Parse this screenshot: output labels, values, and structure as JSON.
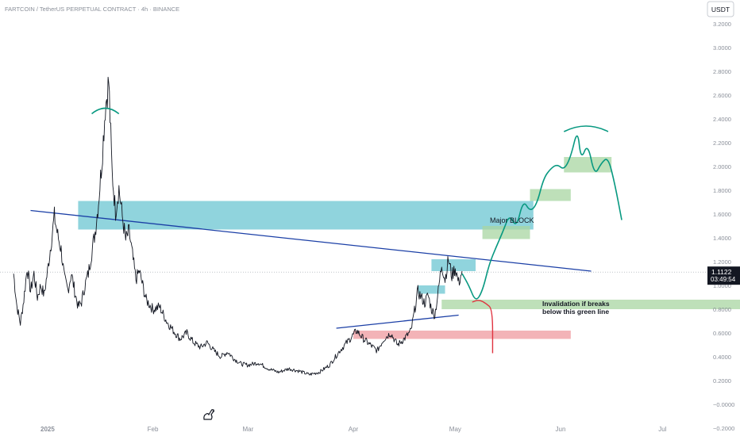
{
  "header": {
    "symbol_line": "FARTCOIN / TetherUS PERPETUAL CONTRACT · 4h · BINANCE"
  },
  "currency_button": "USDT",
  "price_marker": {
    "price": "1.1122",
    "countdown": "03:49:54"
  },
  "annotations": {
    "major_block": "Major BLOCK",
    "invalidation_line1": "Invalidation if breaks",
    "invalidation_line2": "below this green line"
  },
  "colors": {
    "price": "#131722",
    "projection": "#089981",
    "invalidation": "#e0323f",
    "trendline": "#1b3fa6",
    "block": "#46b8c6",
    "green_zone": "#a8d5a2",
    "red_zone": "#f0a0a5",
    "axis_text": "#8a8f99"
  },
  "chart_data": {
    "type": "line",
    "title": "FARTCOIN / TetherUS PERPETUAL CONTRACT · 4h · BINANCE",
    "ylim": [
      -0.2,
      3.4
    ],
    "y_ticks": [
      -0.2,
      0.0,
      0.2,
      0.4,
      0.6,
      0.8,
      1.0,
      1.2,
      1.4,
      1.6,
      1.8,
      2.0,
      2.2,
      2.4,
      2.6,
      2.8,
      3.0,
      3.2
    ],
    "y_tick_labels": [
      "−0.2000",
      "−0.0000",
      "0.2000",
      "0.4000",
      "0.6000",
      "0.8000",
      "1.0000",
      "1.2000",
      "1.4000",
      "1.6000",
      "1.8000",
      "2.0000",
      "2.2000",
      "2.4000",
      "2.6000",
      "2.8000",
      "3.0000",
      "3.2000"
    ],
    "x_range": [
      "2024-12-18",
      "2025-07-14"
    ],
    "x_ticks": [
      {
        "date": "2025-01-01",
        "label": "2025"
      },
      {
        "date": "2025-02-01",
        "label": "Feb"
      },
      {
        "date": "2025-03-01",
        "label": "Mar"
      },
      {
        "date": "2025-04-01",
        "label": "Apr"
      },
      {
        "date": "2025-05-01",
        "label": "May"
      },
      {
        "date": "2025-06-01",
        "label": "Jun"
      },
      {
        "date": "2025-07-01",
        "label": "Jul"
      }
    ],
    "price_series": [
      [
        "2024-12-22",
        1.1
      ],
      [
        "2024-12-23",
        0.82
      ],
      [
        "2024-12-24",
        0.68
      ],
      [
        "2024-12-25",
        0.88
      ],
      [
        "2024-12-26",
        1.15
      ],
      [
        "2024-12-27",
        0.95
      ],
      [
        "2024-12-28",
        1.1
      ],
      [
        "2024-12-29",
        0.9
      ],
      [
        "2024-12-30",
        1.0
      ],
      [
        "2024-12-31",
        0.92
      ],
      [
        "2025-01-01",
        1.12
      ],
      [
        "2025-01-02",
        1.35
      ],
      [
        "2025-01-03",
        1.58
      ],
      [
        "2025-01-04",
        1.42
      ],
      [
        "2025-01-05",
        1.3
      ],
      [
        "2025-01-06",
        1.05
      ],
      [
        "2025-01-07",
        0.96
      ],
      [
        "2025-01-08",
        1.1
      ],
      [
        "2025-01-09",
        0.95
      ],
      [
        "2025-01-10",
        0.82
      ],
      [
        "2025-01-11",
        0.86
      ],
      [
        "2025-01-12",
        1.0
      ],
      [
        "2025-01-13",
        1.1
      ],
      [
        "2025-01-14",
        1.28
      ],
      [
        "2025-01-15",
        1.45
      ],
      [
        "2025-01-16",
        1.7
      ],
      [
        "2025-01-17",
        2.05
      ],
      [
        "2025-01-18",
        2.5
      ],
      [
        "2025-01-19",
        2.72
      ],
      [
        "2025-01-20",
        1.95
      ],
      [
        "2025-01-21",
        1.62
      ],
      [
        "2025-01-22",
        1.82
      ],
      [
        "2025-01-23",
        1.58
      ],
      [
        "2025-01-24",
        1.38
      ],
      [
        "2025-01-25",
        1.45
      ],
      [
        "2025-01-26",
        1.25
      ],
      [
        "2025-01-27",
        1.05
      ],
      [
        "2025-01-28",
        1.12
      ],
      [
        "2025-01-29",
        1.0
      ],
      [
        "2025-01-30",
        0.88
      ],
      [
        "2025-02-01",
        0.8
      ],
      [
        "2025-02-03",
        0.82
      ],
      [
        "2025-02-05",
        0.7
      ],
      [
        "2025-02-07",
        0.62
      ],
      [
        "2025-02-09",
        0.55
      ],
      [
        "2025-02-11",
        0.6
      ],
      [
        "2025-02-13",
        0.52
      ],
      [
        "2025-02-15",
        0.48
      ],
      [
        "2025-02-17",
        0.52
      ],
      [
        "2025-02-19",
        0.45
      ],
      [
        "2025-02-21",
        0.4
      ],
      [
        "2025-02-23",
        0.44
      ],
      [
        "2025-02-25",
        0.38
      ],
      [
        "2025-02-27",
        0.34
      ],
      [
        "2025-03-01",
        0.33
      ],
      [
        "2025-03-04",
        0.35
      ],
      [
        "2025-03-07",
        0.3
      ],
      [
        "2025-03-10",
        0.27
      ],
      [
        "2025-03-13",
        0.3
      ],
      [
        "2025-03-16",
        0.28
      ],
      [
        "2025-03-19",
        0.25
      ],
      [
        "2025-03-22",
        0.27
      ],
      [
        "2025-03-25",
        0.33
      ],
      [
        "2025-03-28",
        0.45
      ],
      [
        "2025-03-31",
        0.55
      ],
      [
        "2025-04-02",
        0.62
      ],
      [
        "2025-04-04",
        0.55
      ],
      [
        "2025-04-06",
        0.5
      ],
      [
        "2025-04-08",
        0.45
      ],
      [
        "2025-04-10",
        0.55
      ],
      [
        "2025-04-12",
        0.6
      ],
      [
        "2025-04-14",
        0.5
      ],
      [
        "2025-04-16",
        0.55
      ],
      [
        "2025-04-18",
        0.62
      ],
      [
        "2025-04-20",
        0.95
      ],
      [
        "2025-04-21",
        0.9
      ],
      [
        "2025-04-22",
        0.85
      ],
      [
        "2025-04-23",
        0.92
      ],
      [
        "2025-04-24",
        0.8
      ],
      [
        "2025-04-25",
        0.75
      ],
      [
        "2025-04-26",
        0.95
      ],
      [
        "2025-04-27",
        1.18
      ],
      [
        "2025-04-28",
        1.05
      ],
      [
        "2025-04-29",
        1.22
      ],
      [
        "2025-04-30",
        1.08
      ],
      [
        "2025-05-01",
        1.15
      ],
      [
        "2025-05-02",
        1.02
      ],
      [
        "2025-05-03",
        1.12
      ]
    ],
    "projection_path": [
      [
        "2025-05-03",
        1.1
      ],
      [
        "2025-05-05",
        1.0
      ],
      [
        "2025-05-07",
        0.86
      ],
      [
        "2025-05-09",
        0.95
      ],
      [
        "2025-05-11",
        1.18
      ],
      [
        "2025-05-13",
        1.32
      ],
      [
        "2025-05-15",
        1.45
      ],
      [
        "2025-05-17",
        1.6
      ],
      [
        "2025-05-19",
        1.48
      ],
      [
        "2025-05-21",
        1.72
      ],
      [
        "2025-05-23",
        1.62
      ],
      [
        "2025-05-25",
        1.68
      ],
      [
        "2025-05-27",
        1.9
      ],
      [
        "2025-05-29",
        1.98
      ],
      [
        "2025-05-31",
        2.02
      ],
      [
        "2025-06-02",
        1.97
      ],
      [
        "2025-06-04",
        2.08
      ],
      [
        "2025-06-06",
        2.32
      ],
      [
        "2025-06-07",
        2.05
      ],
      [
        "2025-06-09",
        2.2
      ],
      [
        "2025-06-11",
        1.92
      ],
      [
        "2025-06-13",
        2.03
      ],
      [
        "2025-06-15",
        2.08
      ],
      [
        "2025-06-17",
        1.85
      ],
      [
        "2025-06-19",
        1.55
      ]
    ],
    "projection_caps": [
      {
        "from": "2025-01-14",
        "to": "2025-01-22",
        "level": 2.49
      },
      {
        "from": "2025-06-02",
        "to": "2025-06-15",
        "level": 2.34
      }
    ],
    "invalidation_path": [
      [
        "2025-05-06",
        0.86
      ],
      [
        "2025-05-08",
        0.88
      ],
      [
        "2025-05-10",
        0.85
      ],
      [
        "2025-05-12",
        0.8
      ],
      [
        "2025-05-12",
        0.43
      ]
    ],
    "trendlines": [
      {
        "from": [
          "2024-12-27",
          1.63
        ],
        "to": [
          "2025-06-10",
          1.12
        ]
      },
      {
        "from": [
          "2025-03-27",
          0.64
        ],
        "to": [
          "2025-05-02",
          0.75
        ]
      }
    ],
    "zones": [
      {
        "kind": "block",
        "from": "2025-01-10",
        "to": "2025-05-24",
        "low": 1.47,
        "high": 1.71
      },
      {
        "kind": "block",
        "from": "2025-04-24",
        "to": "2025-05-07",
        "low": 1.12,
        "high": 1.22
      },
      {
        "kind": "block",
        "from": "2025-04-20",
        "to": "2025-04-28",
        "low": 0.93,
        "high": 1.0
      },
      {
        "kind": "green",
        "from": "2025-04-27",
        "to": "2025-07-28",
        "low": 0.8,
        "high": 0.88
      },
      {
        "kind": "green",
        "from": "2025-05-09",
        "to": "2025-05-23",
        "low": 1.39,
        "high": 1.5
      },
      {
        "kind": "green",
        "from": "2025-05-23",
        "to": "2025-06-04",
        "low": 1.71,
        "high": 1.81
      },
      {
        "kind": "green",
        "from": "2025-06-02",
        "to": "2025-06-16",
        "low": 1.95,
        "high": 2.08
      },
      {
        "kind": "red",
        "from": "2025-04-01",
        "to": "2025-06-04",
        "low": 0.55,
        "high": 0.62
      }
    ],
    "current_price": 1.1122
  }
}
